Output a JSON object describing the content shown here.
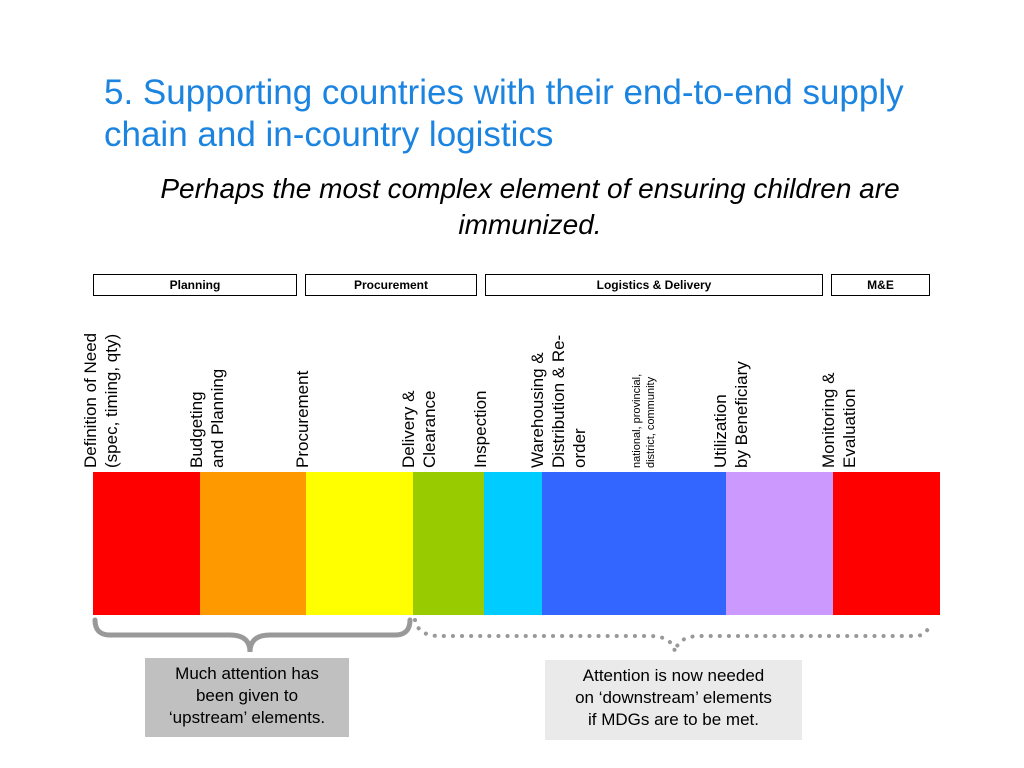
{
  "title": "5. Supporting countries with their end-to-end supply chain and in-country logistics",
  "subtitle": "Perhaps the most complex element of ensuring children are immunized.",
  "phases": [
    {
      "label": "Planning"
    },
    {
      "label": "Procurement"
    },
    {
      "label": "Logistics & Delivery"
    },
    {
      "label": "M&E"
    }
  ],
  "steps": [
    {
      "lines": [
        "Definition of Need",
        "(spec, timing, qty)"
      ]
    },
    {
      "lines": [
        "Budgeting",
        "and Planning"
      ]
    },
    {
      "lines": [
        "Procurement"
      ]
    },
    {
      "lines": [
        "Delivery &",
        "Clearance"
      ]
    },
    {
      "lines": [
        "Inspection"
      ]
    },
    {
      "lines": [
        "Warehousing &",
        "Distribution & Re-",
        "order"
      ]
    },
    {
      "lines": [
        "national, provincial,",
        "district, community"
      ]
    },
    {
      "lines": [
        "Utilization",
        "by Beneficiary"
      ]
    },
    {
      "lines": [
        "Monitoring &",
        "Evaluation"
      ]
    }
  ],
  "bands": [
    {
      "color": "#ff0000"
    },
    {
      "color": "#ff9900"
    },
    {
      "color": "#ffff00"
    },
    {
      "color": "#99cc00"
    },
    {
      "color": "#00ccff"
    },
    {
      "color": "#3366ff"
    },
    {
      "color": "#cc99ff"
    },
    {
      "color": "#ff0000"
    }
  ],
  "callouts": {
    "upstream": {
      "lines": [
        "Much attention has",
        "been given to",
        "‘upstream’ elements."
      ],
      "bg": "#c0c0c0"
    },
    "downstream": {
      "lines": [
        "Attention is now needed",
        "on ‘downstream’ elements",
        "if MDGs are to be met."
      ],
      "bg": "#eaeaea"
    }
  }
}
